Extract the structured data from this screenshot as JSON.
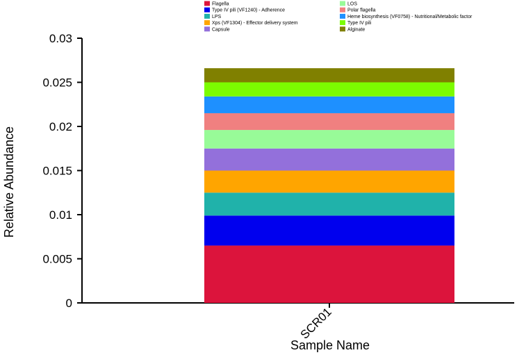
{
  "chart_data": {
    "type": "bar",
    "stacked": true,
    "categories": [
      "SCR01"
    ],
    "xlabel": "Sample Name",
    "ylabel": "Relative Abundance",
    "ylim": [
      0,
      0.03
    ],
    "yticks": [
      "0",
      "0.005",
      "0.01",
      "0.015",
      "0.02",
      "0.025",
      "0.03"
    ],
    "legend_position": "top",
    "series": [
      {
        "name": "Flagella",
        "color": "#dc143c",
        "values": [
          0.0065
        ]
      },
      {
        "name": "Type IV pili (VF1240) - Adherence",
        "color": "#0000ee",
        "values": [
          0.0034
        ]
      },
      {
        "name": "LPS",
        "color": "#20b2aa",
        "values": [
          0.0026
        ]
      },
      {
        "name": "Xps (VF1304) - Effector delivery system",
        "color": "#ffa500",
        "values": [
          0.0025
        ]
      },
      {
        "name": "Capsule",
        "color": "#9370db",
        "values": [
          0.0025
        ]
      },
      {
        "name": "LOS",
        "color": "#98fb98",
        "values": [
          0.0021
        ]
      },
      {
        "name": "Polar flagella",
        "color": "#f08080",
        "values": [
          0.0019
        ]
      },
      {
        "name": "Heme biosynthesis (VF0758) - Nutritional/Metabolic factor",
        "color": "#1e90ff",
        "values": [
          0.0019
        ]
      },
      {
        "name": "Type IV pili",
        "color": "#7cfc00",
        "values": [
          0.0016
        ]
      },
      {
        "name": "Alginate",
        "color": "#808000",
        "values": [
          0.0016
        ]
      }
    ]
  }
}
